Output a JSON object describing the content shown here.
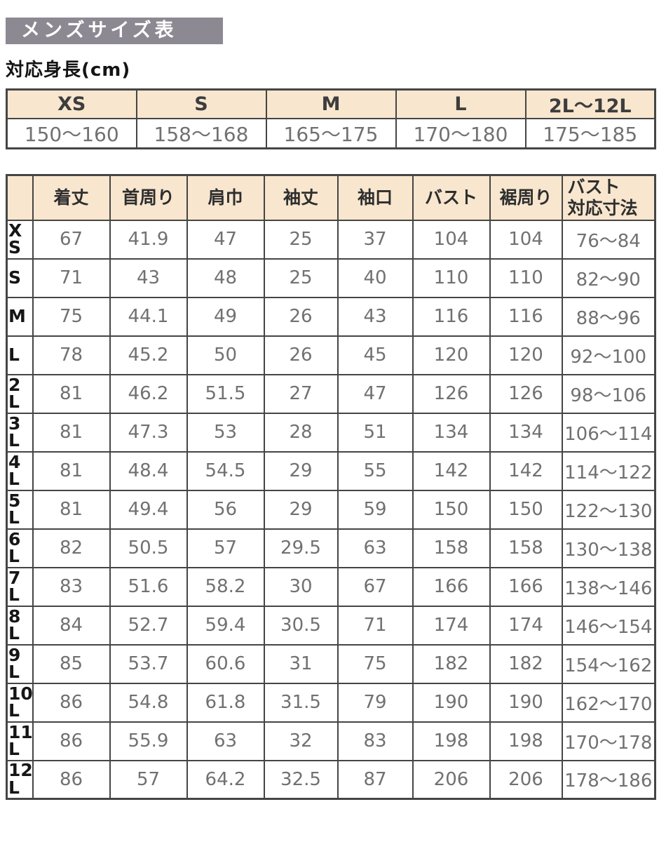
{
  "page": {
    "title": "メンズサイズ表",
    "subtitle": "対応身長(cm)"
  },
  "colors": {
    "title_bg": "#8d8992",
    "title_text": "#ffffff",
    "header_bg": "#f8e6ce",
    "border": "#454545",
    "value_text": "#717171",
    "label_text": "#161616",
    "header_text": "#2e2e2e"
  },
  "height_table": {
    "columns": [
      "XS",
      "S",
      "M",
      "L",
      "2L〜12L"
    ],
    "values": [
      "150〜160",
      "158〜168",
      "165〜175",
      "170〜180",
      "175〜185"
    ]
  },
  "size_table": {
    "columns": [
      "着丈",
      "首周り",
      "肩巾",
      "袖丈",
      "袖口",
      "バスト",
      "裾周り",
      "バスト\n対応寸法"
    ],
    "rows": [
      {
        "label": "X\nS",
        "values": [
          "67",
          "41.9",
          "47",
          "25",
          "37",
          "104",
          "104",
          "76〜84"
        ]
      },
      {
        "label": "S",
        "values": [
          "71",
          "43",
          "48",
          "25",
          "40",
          "110",
          "110",
          "82〜90"
        ]
      },
      {
        "label": "M",
        "values": [
          "75",
          "44.1",
          "49",
          "26",
          "43",
          "116",
          "116",
          "88〜96"
        ]
      },
      {
        "label": "L",
        "values": [
          "78",
          "45.2",
          "50",
          "26",
          "45",
          "120",
          "120",
          "92〜100"
        ]
      },
      {
        "label": "2\nL",
        "values": [
          "81",
          "46.2",
          "51.5",
          "27",
          "47",
          "126",
          "126",
          "98〜106"
        ]
      },
      {
        "label": "3\nL",
        "values": [
          "81",
          "47.3",
          "53",
          "28",
          "51",
          "134",
          "134",
          "106〜114"
        ]
      },
      {
        "label": "4\nL",
        "values": [
          "81",
          "48.4",
          "54.5",
          "29",
          "55",
          "142",
          "142",
          "114〜122"
        ]
      },
      {
        "label": "5\nL",
        "values": [
          "81",
          "49.4",
          "56",
          "29",
          "59",
          "150",
          "150",
          "122〜130"
        ]
      },
      {
        "label": "6\nL",
        "values": [
          "82",
          "50.5",
          "57",
          "29.5",
          "63",
          "158",
          "158",
          "130〜138"
        ]
      },
      {
        "label": "7\nL",
        "values": [
          "83",
          "51.6",
          "58.2",
          "30",
          "67",
          "166",
          "166",
          "138〜146"
        ]
      },
      {
        "label": "8\nL",
        "values": [
          "84",
          "52.7",
          "59.4",
          "30.5",
          "71",
          "174",
          "174",
          "146〜154"
        ]
      },
      {
        "label": "9\nL",
        "values": [
          "85",
          "53.7",
          "60.6",
          "31",
          "75",
          "182",
          "182",
          "154〜162"
        ]
      },
      {
        "label": "10\nL",
        "values": [
          "86",
          "54.8",
          "61.8",
          "31.5",
          "79",
          "190",
          "190",
          "162〜170"
        ]
      },
      {
        "label": "11\nL",
        "values": [
          "86",
          "55.9",
          "63",
          "32",
          "83",
          "198",
          "198",
          "170〜178"
        ]
      },
      {
        "label": "12\nL",
        "values": [
          "86",
          "57",
          "64.2",
          "32.5",
          "87",
          "206",
          "206",
          "178〜186"
        ]
      }
    ]
  }
}
